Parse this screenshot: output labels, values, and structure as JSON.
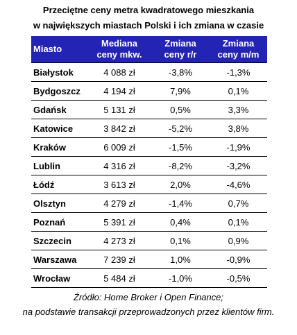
{
  "title": [
    "Przeciętne ceny metra kwadratowego mieszkania",
    "w największych miastach Polski i ich zmiana w czasie"
  ],
  "table": {
    "header": [
      [
        "Miasto"
      ],
      [
        "Mediana",
        "ceny mkw."
      ],
      [
        "Zmiana",
        "ceny r/r"
      ],
      [
        "Zmiana",
        "ceny m/m"
      ]
    ],
    "rows": [
      [
        "Białystok",
        "4 088 zł",
        "-3,8%",
        "-1,3%"
      ],
      [
        "Bydgoszcz",
        "4 194 zł",
        "7,9%",
        "0,1%"
      ],
      [
        "Gdańsk",
        "5 131 zł",
        "0,5%",
        "3,3%"
      ],
      [
        "Katowice",
        "3 842 zł",
        "-5,2%",
        "3,8%"
      ],
      [
        "Kraków",
        "6 009 zł",
        "-1,5%",
        "-1,9%"
      ],
      [
        "Lublin",
        "4 316 zł",
        "-8,2%",
        "-3,2%"
      ],
      [
        "Łódź",
        "3 613 zł",
        "2,0%",
        "-4,6%"
      ],
      [
        "Olsztyn",
        "4 279 zł",
        "-1,4%",
        "0,7%"
      ],
      [
        "Poznań",
        "5 391 zł",
        "0,4%",
        "0,1%"
      ],
      [
        "Szczecin",
        "4 273 zł",
        "0,1%",
        "0,9%"
      ],
      [
        "Warszawa",
        "7 239 zł",
        "1,0%",
        "-0,9%"
      ],
      [
        "Wrocław",
        "5 484 zł",
        "-1,0%",
        "-0,5%"
      ]
    ]
  },
  "footer": [
    "Źródło: Home Broker i Open Finance;",
    "na podstawie transakcji przeprowadzonych przez klientów firm."
  ]
}
